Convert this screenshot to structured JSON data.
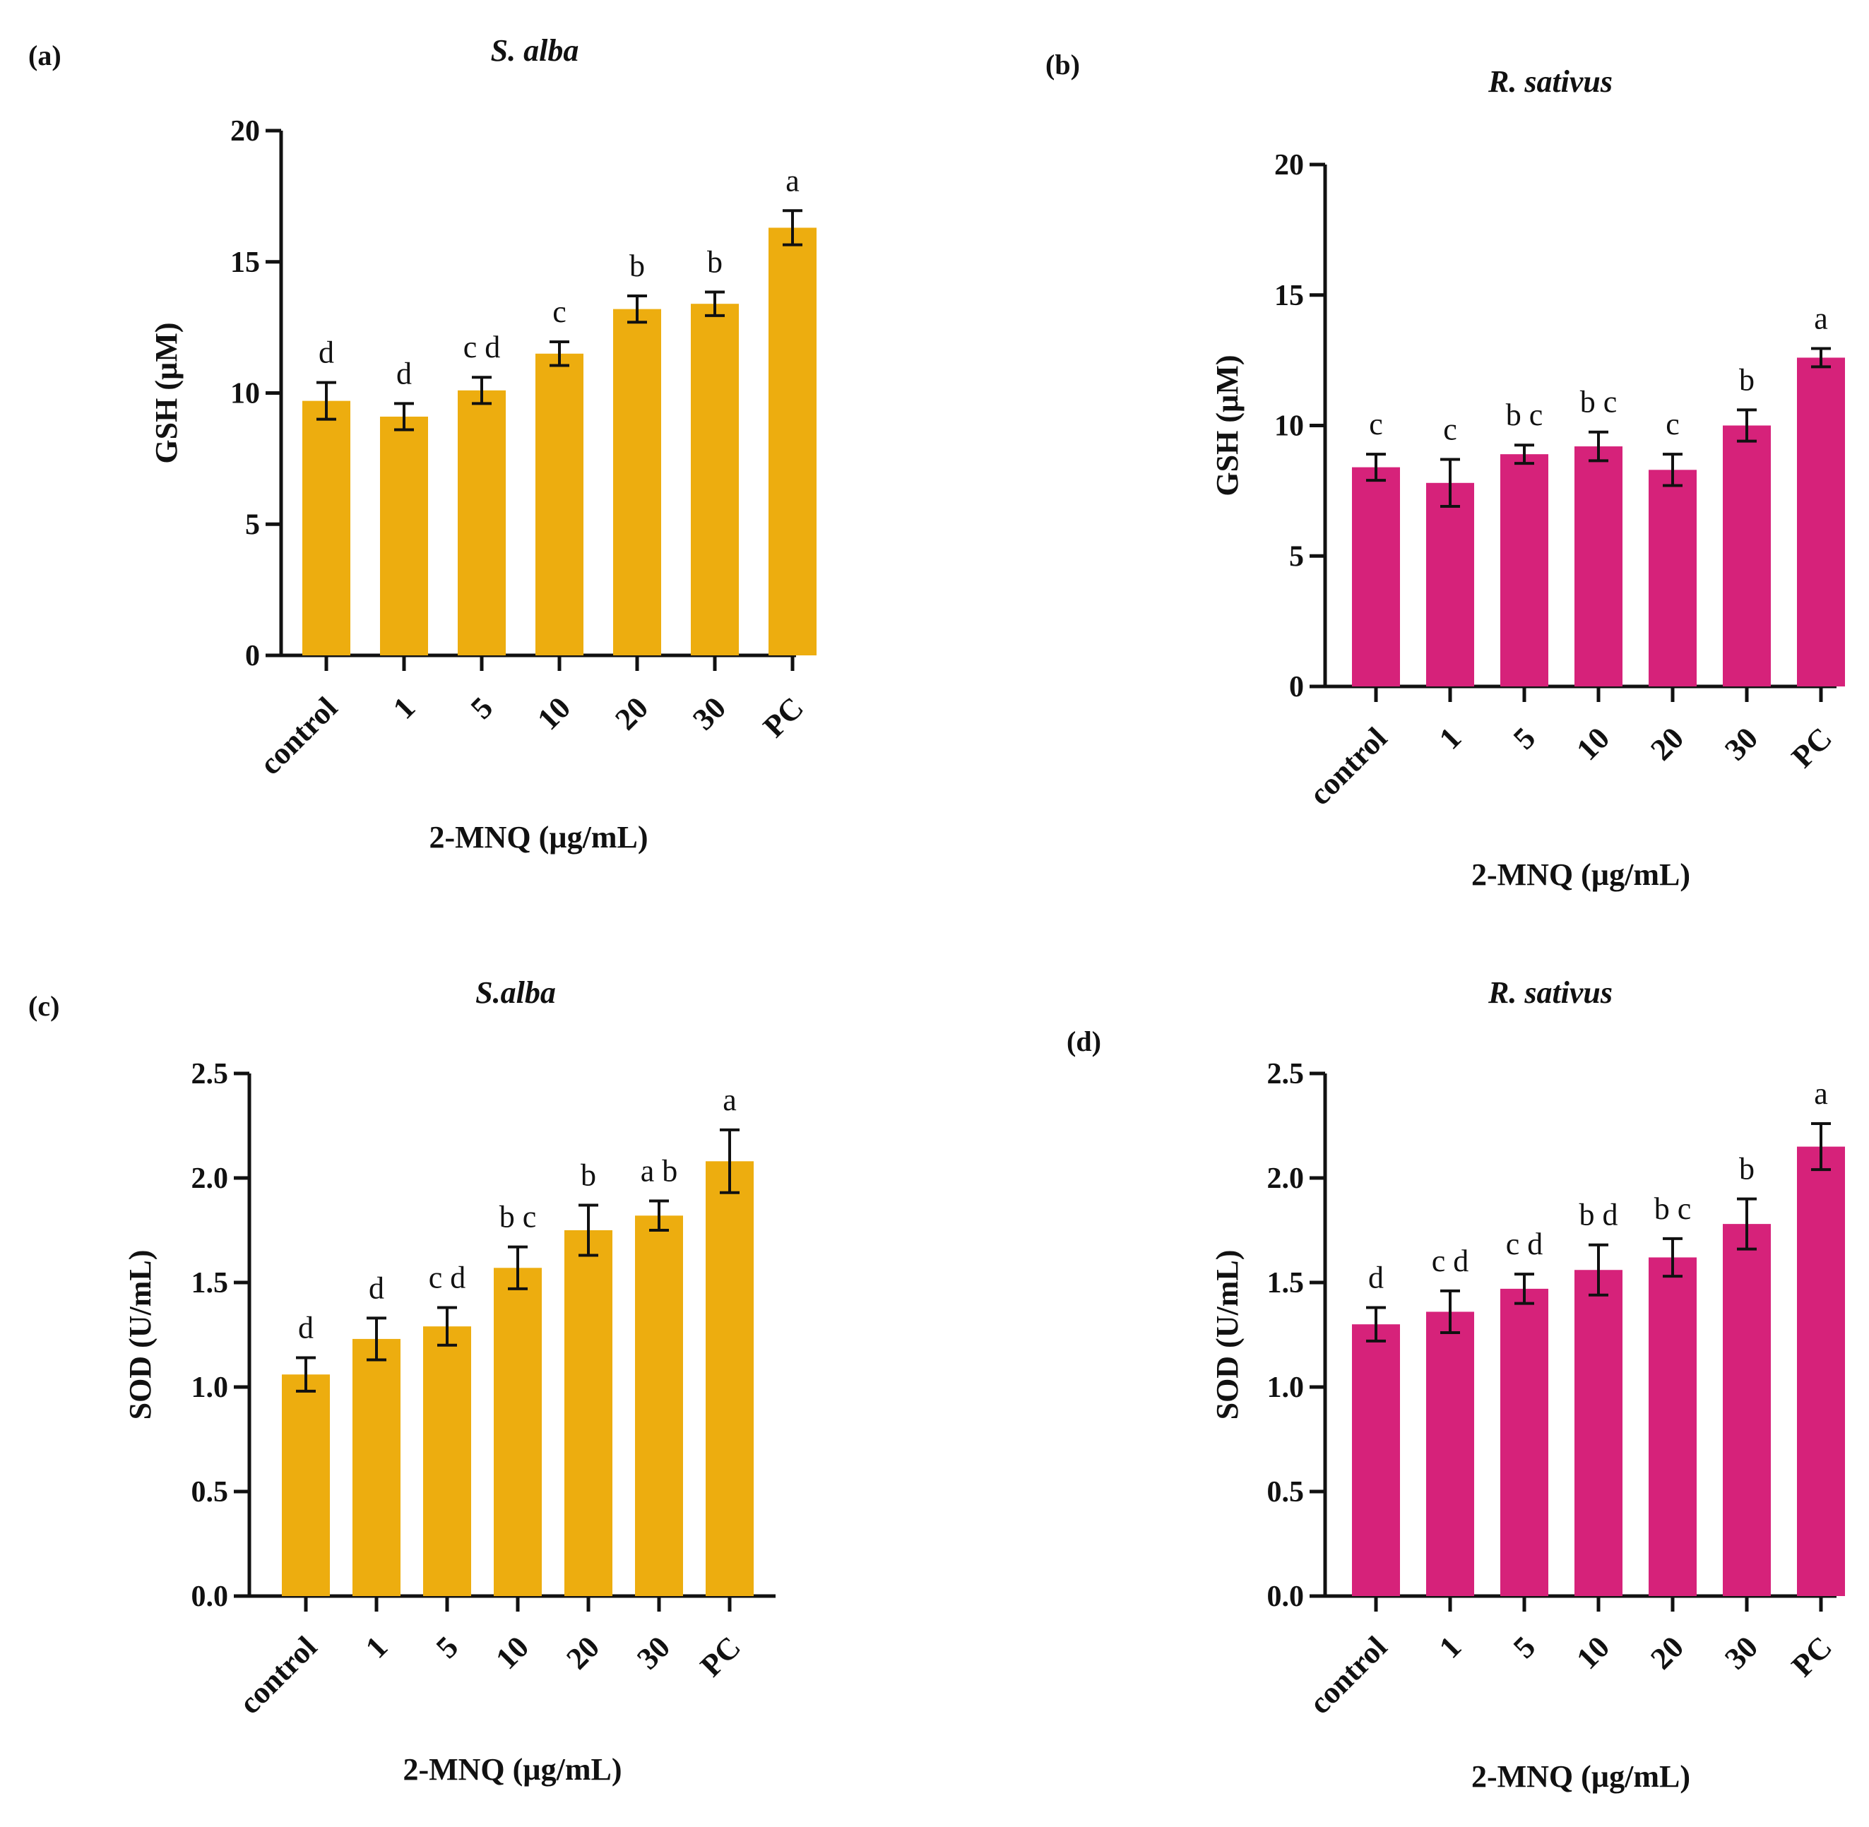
{
  "chart_data": [
    {
      "panel": "(a)",
      "type": "bar",
      "title": "S. alba",
      "xlabel": "2-MNQ (µg/mL)",
      "ylabel": "GSH (µM)",
      "categories": [
        "control",
        "1",
        "5",
        "10",
        "20",
        "30",
        "PC"
      ],
      "values": [
        9.7,
        9.1,
        10.1,
        11.5,
        13.2,
        13.4,
        16.3
      ],
      "errors": [
        0.7,
        0.5,
        0.5,
        0.45,
        0.5,
        0.45,
        0.65
      ],
      "significance": [
        "d",
        "d",
        "c d",
        "c",
        "b",
        "b",
        "a"
      ],
      "ylim": [
        0,
        20
      ],
      "yticks": [
        "0",
        "5",
        "10",
        "15",
        "20"
      ],
      "color": "#EDAD0F",
      "grid": false,
      "legend": "none"
    },
    {
      "panel": "(b)",
      "type": "bar",
      "title": "R. sativus",
      "xlabel": "2-MNQ (µg/mL)",
      "ylabel": "GSH (µM)",
      "categories": [
        "control",
        "1",
        "5",
        "10",
        "20",
        "30",
        "PC"
      ],
      "values": [
        8.4,
        7.8,
        8.9,
        9.2,
        8.3,
        10.0,
        12.6
      ],
      "errors": [
        0.5,
        0.9,
        0.35,
        0.55,
        0.6,
        0.6,
        0.35
      ],
      "significance": [
        "c",
        "c",
        "b c",
        "b c",
        "c",
        "b",
        "a"
      ],
      "ylim": [
        0,
        20
      ],
      "yticks": [
        "0",
        "5",
        "10",
        "15",
        "20"
      ],
      "color": "#D6227A",
      "grid": false,
      "legend": "none"
    },
    {
      "panel": "(c)",
      "type": "bar",
      "title": "S.alba",
      "xlabel": "2-MNQ (µg/mL)",
      "ylabel": "SOD (U/mL)",
      "categories": [
        "control",
        "1",
        "5",
        "10",
        "20",
        "30",
        "PC"
      ],
      "values": [
        1.06,
        1.23,
        1.29,
        1.57,
        1.75,
        1.82,
        2.08
      ],
      "errors": [
        0.08,
        0.1,
        0.09,
        0.1,
        0.12,
        0.07,
        0.15
      ],
      "significance": [
        "d",
        "d",
        "c d",
        "b c",
        "b",
        "a b",
        "a"
      ],
      "ylim": [
        0,
        2.5
      ],
      "yticks": [
        "0.0",
        "0.5",
        "1.0",
        "1.5",
        "2.0",
        "2.5"
      ],
      "color": "#EDAD0F",
      "grid": false,
      "legend": "none"
    },
    {
      "panel": "(d)",
      "type": "bar",
      "title": "R. sativus",
      "xlabel": "2-MNQ (µg/mL)",
      "ylabel": "SOD (U/mL)",
      "categories": [
        "control",
        "1",
        "5",
        "10",
        "20",
        "30",
        "PC"
      ],
      "values": [
        1.3,
        1.36,
        1.47,
        1.56,
        1.62,
        1.78,
        2.15
      ],
      "errors": [
        0.08,
        0.1,
        0.07,
        0.12,
        0.09,
        0.12,
        0.11
      ],
      "significance": [
        "d",
        "c d",
        "c d",
        "b d",
        "b c",
        "b",
        "a"
      ],
      "ylim": [
        0,
        2.5
      ],
      "yticks": [
        "0.0",
        "0.5",
        "1.0",
        "1.5",
        "2.0",
        "2.5"
      ],
      "color": "#D6227A",
      "grid": false,
      "legend": "none"
    }
  ]
}
